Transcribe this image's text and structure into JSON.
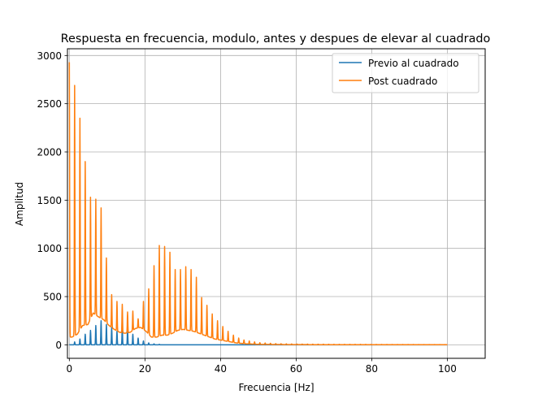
{
  "chart_data": {
    "type": "line",
    "title": "Respuesta en frecuencia, modulo, antes y despues de elevar al cuadrado",
    "xlabel": "Frecuencia [Hz]",
    "ylabel": "Amplitud",
    "xlim": [
      -0.5,
      110
    ],
    "ylim": [
      -140,
      3070
    ],
    "xticks": [
      0,
      20,
      40,
      60,
      80,
      100
    ],
    "yticks": [
      0,
      500,
      1000,
      1500,
      2000,
      2500,
      3000
    ],
    "grid": true,
    "legend_position": "top-right",
    "series": [
      {
        "name": "Previo al cuadrado",
        "color": "#1f77b4",
        "harmonic_spacing_hz": 1.4,
        "peaks": [
          [
            0,
            0
          ],
          [
            1.4,
            30
          ],
          [
            2.8,
            60
          ],
          [
            4.2,
            110
          ],
          [
            5.6,
            150
          ],
          [
            7.0,
            200
          ],
          [
            8.4,
            250
          ],
          [
            9.8,
            210
          ],
          [
            11.2,
            180
          ],
          [
            12.6,
            140
          ],
          [
            14.0,
            180
          ],
          [
            15.4,
            170
          ],
          [
            16.8,
            110
          ],
          [
            18.2,
            70
          ],
          [
            19.6,
            40
          ],
          [
            21.0,
            20
          ],
          [
            22.4,
            10
          ],
          [
            23.8,
            5
          ],
          [
            25.2,
            0
          ],
          [
            100,
            0
          ]
        ]
      },
      {
        "name": "Post cuadrado",
        "color": "#ff7f0e",
        "harmonic_spacing_hz": 1.4,
        "peaks": [
          [
            0,
            2930
          ],
          [
            1.4,
            2690
          ],
          [
            2.8,
            2350
          ],
          [
            4.2,
            1900
          ],
          [
            5.6,
            1530
          ],
          [
            7.0,
            1510
          ],
          [
            8.4,
            1420
          ],
          [
            9.8,
            900
          ],
          [
            11.2,
            520
          ],
          [
            12.6,
            450
          ],
          [
            14.0,
            420
          ],
          [
            15.4,
            340
          ],
          [
            16.8,
            350
          ],
          [
            18.2,
            270
          ],
          [
            19.6,
            450
          ],
          [
            21.0,
            580
          ],
          [
            22.4,
            820
          ],
          [
            23.8,
            1030
          ],
          [
            25.2,
            1020
          ],
          [
            26.6,
            960
          ],
          [
            28.0,
            780
          ],
          [
            29.4,
            780
          ],
          [
            30.8,
            810
          ],
          [
            32.2,
            780
          ],
          [
            33.6,
            700
          ],
          [
            35.0,
            490
          ],
          [
            36.4,
            410
          ],
          [
            37.8,
            320
          ],
          [
            39.2,
            250
          ],
          [
            40.6,
            190
          ],
          [
            42.0,
            140
          ],
          [
            43.4,
            100
          ],
          [
            44.8,
            70
          ],
          [
            46.2,
            50
          ],
          [
            47.6,
            40
          ],
          [
            49.0,
            30
          ],
          [
            50.4,
            22
          ],
          [
            55,
            12
          ],
          [
            60,
            8
          ],
          [
            70,
            5
          ],
          [
            80,
            4
          ],
          [
            90,
            3
          ],
          [
            100,
            2
          ]
        ],
        "troughs": [
          [
            0.7,
            80
          ],
          [
            2.1,
            110
          ],
          [
            3.5,
            200
          ],
          [
            4.9,
            210
          ],
          [
            6.3,
            330
          ],
          [
            7.7,
            290
          ],
          [
            9.1,
            260
          ],
          [
            10.5,
            200
          ],
          [
            11.9,
            160
          ],
          [
            13.3,
            130
          ],
          [
            14.7,
            120
          ],
          [
            16.1,
            130
          ],
          [
            17.5,
            170
          ],
          [
            18.9,
            180
          ],
          [
            20.3,
            140
          ],
          [
            21.7,
            80
          ],
          [
            23.1,
            80
          ],
          [
            24.5,
            100
          ],
          [
            25.9,
            100
          ],
          [
            27.3,
            120
          ],
          [
            28.7,
            150
          ],
          [
            30.1,
            160
          ],
          [
            31.5,
            150
          ],
          [
            32.9,
            140
          ],
          [
            34.3,
            120
          ],
          [
            35.7,
            100
          ],
          [
            37.1,
            80
          ],
          [
            38.5,
            60
          ],
          [
            39.9,
            50
          ],
          [
            41.3,
            40
          ],
          [
            42.7,
            30
          ],
          [
            44.1,
            20
          ],
          [
            45.5,
            15
          ],
          [
            46.9,
            10
          ],
          [
            48.3,
            8
          ],
          [
            49.7,
            5
          ],
          [
            55,
            3
          ],
          [
            60,
            2
          ],
          [
            70,
            1
          ],
          [
            80,
            1
          ],
          [
            90,
            1
          ],
          [
            100,
            1
          ]
        ]
      }
    ]
  }
}
